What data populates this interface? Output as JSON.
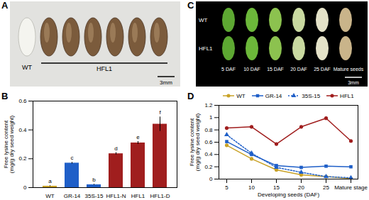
{
  "photos": [
    {
      "panel": "A",
      "label_left": "WT",
      "label_group": "HFL1",
      "scale_bar": "3mm"
    },
    {
      "panel": "C",
      "rows": [
        "WT",
        "HFL1"
      ],
      "columns": [
        "5 DAF",
        "10 DAF",
        "15 DAF",
        "20 DAF",
        "25 DAF",
        "Mature seeds"
      ],
      "scale_bar": "3mm"
    }
  ],
  "chart_data": [
    {
      "panel": "B",
      "type": "bar",
      "categories": [
        "WT",
        "GR-14",
        "35S-15",
        "HFL1-N",
        "HFL1",
        "HFL1-D"
      ],
      "values": [
        0.01,
        0.17,
        0.02,
        0.235,
        0.31,
        0.44
      ],
      "errors": [
        0.003,
        0.005,
        0.003,
        0.008,
        0.01,
        0.05
      ],
      "annotations": [
        "a",
        "c",
        "b",
        "d",
        "e",
        "f"
      ],
      "colors": [
        "#c9a227",
        "#1f5fc8",
        "#1f5fc8",
        "#a01e1e",
        "#a01e1e",
        "#a01e1e"
      ],
      "ylabel": "Free lysine content\n(mg/g dry seed weight)",
      "ylim": [
        0,
        0.6
      ],
      "yticks": [
        0,
        0.2,
        0.4,
        0.6
      ]
    },
    {
      "panel": "D",
      "type": "line",
      "categories": [
        "5",
        "10",
        "15",
        "20",
        "25",
        "Mature stage"
      ],
      "xlabel": "Developing seeds (DAF)",
      "ylabel": "Free lysine content\n(mg/g dry seed weight)",
      "ylim": [
        0,
        1.2
      ],
      "yticks": [
        0,
        0.2,
        0.4,
        0.6,
        0.8,
        1,
        1.2
      ],
      "legend": "top",
      "series": [
        {
          "name": "WT",
          "color": "#c9a227",
          "marker": "circle",
          "line_style": "solid",
          "values": [
            0.55,
            0.33,
            0.15,
            0.07,
            0.04,
            0.01
          ]
        },
        {
          "name": "GR-14",
          "color": "#1f5fc8",
          "marker": "square",
          "line_style": "solid",
          "values": [
            0.61,
            0.4,
            0.22,
            0.19,
            0.21,
            0.2
          ]
        },
        {
          "name": "35S-15",
          "color": "#1f5fc8",
          "marker": "triangle",
          "line_style": "dotted",
          "values": [
            0.72,
            0.42,
            0.19,
            0.11,
            0.04,
            0.02
          ]
        },
        {
          "name": "HFL1",
          "color": "#a01e1e",
          "marker": "circle",
          "line_style": "solid",
          "values": [
            0.83,
            0.85,
            0.57,
            0.85,
            0.99,
            0.62
          ]
        }
      ]
    }
  ]
}
